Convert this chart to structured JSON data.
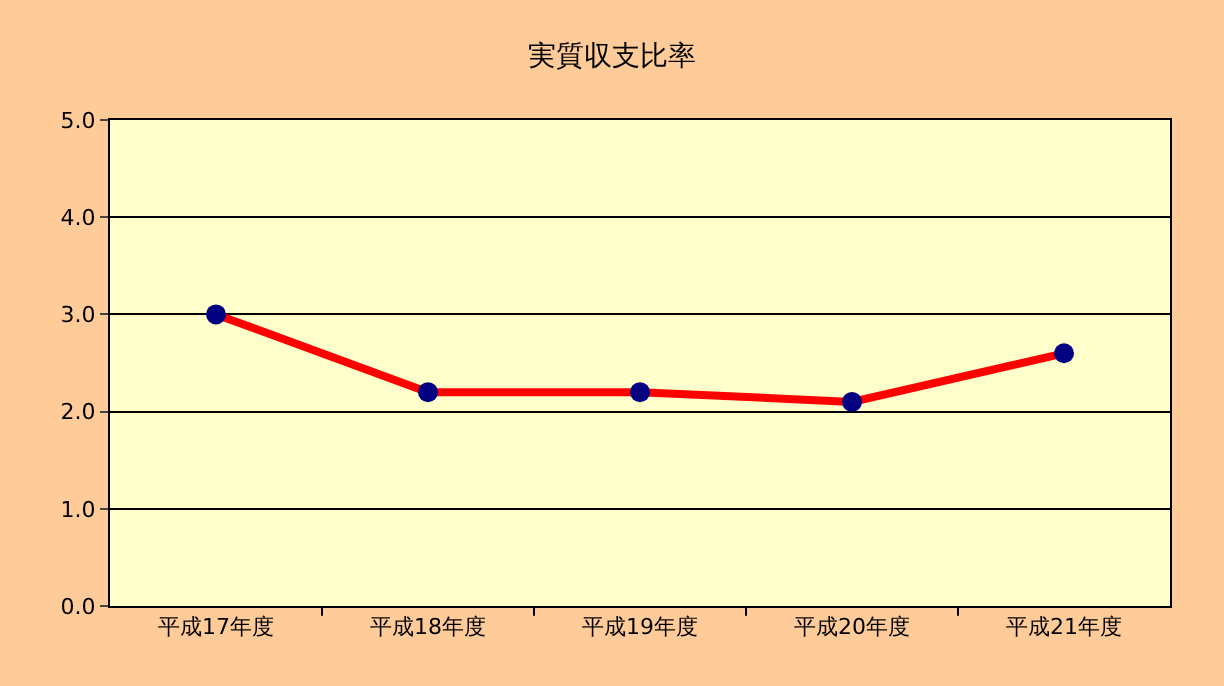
{
  "chart_data": {
    "type": "line",
    "title": "実質収支比率",
    "categories": [
      "平成17年度",
      "平成18年度",
      "平成19年度",
      "平成20年度",
      "平成21年度"
    ],
    "series": [
      {
        "color": "#ff0000",
        "colors": [
          "#000080",
          "#000080",
          "#000080",
          "#000080",
          "#000080"
        ],
        "values": [
          3.0,
          2.2,
          2.2,
          2.1,
          2.6
        ]
      }
    ],
    "ylim": [
      0,
      5
    ],
    "yticks": [
      {
        "value": 0,
        "label": "0.0"
      },
      {
        "value": 1,
        "label": "1.0"
      },
      {
        "value": 2,
        "label": "2.0"
      },
      {
        "value": 3,
        "label": "3.0"
      },
      {
        "value": 4,
        "label": "4.0"
      },
      {
        "value": 5,
        "label": "5.0"
      }
    ],
    "grid": "y",
    "legend": false,
    "marker": "circle",
    "line_style": "solid"
  }
}
